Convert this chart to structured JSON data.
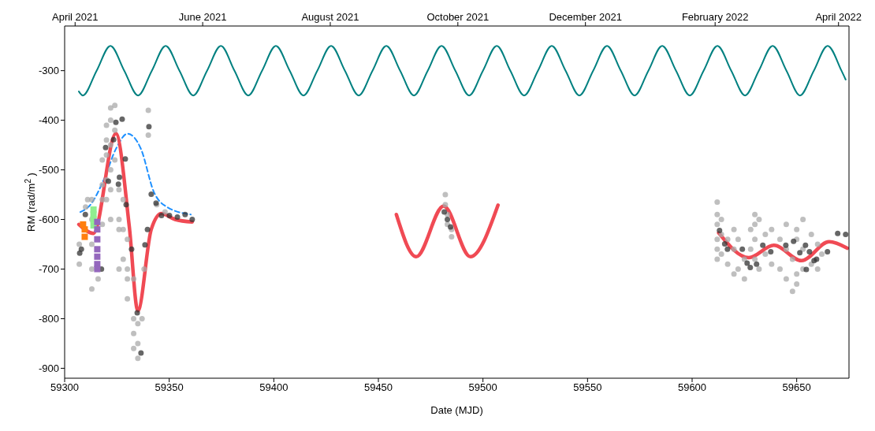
{
  "chart_data": {
    "type": "scatter",
    "xlabel": "Date (MJD)",
    "ylabel": "RM (rad/m$^{2}$)",
    "xlim": [
      59300,
      59675
    ],
    "xticks": [
      59300,
      59350,
      59400,
      59450,
      59500,
      59550,
      59600,
      59650
    ],
    "x2lim": [
      "2021-03-27",
      "2022-04-06"
    ],
    "x2ticks": [
      {
        "value": "2021-04-01",
        "label": "April 2021"
      },
      {
        "value": "2021-06-01",
        "label": "June 2021"
      },
      {
        "value": "2021-08-01",
        "label": "August 2021"
      },
      {
        "value": "2021-10-01",
        "label": "October 2021"
      },
      {
        "value": "2021-12-01",
        "label": "December 2021"
      },
      {
        "value": "2022-02-01",
        "label": "February 2022"
      },
      {
        "value": "2022-04-01",
        "label": "April 2022"
      }
    ],
    "ylim": [
      -920,
      -210
    ],
    "yticks": [
      -900,
      -800,
      -700,
      -600,
      -500,
      -400,
      -300
    ],
    "grid": false,
    "legend": false,
    "series": [
      {
        "marker": "circle",
        "color": "#aaaaaa",
        "x": [
          59307,
          59307,
          59310,
          59311,
          59313,
          59313,
          59313,
          59313,
          59313,
          59316,
          59318,
          59318,
          59318,
          59318,
          59320,
          59320,
          59320,
          59320,
          59320,
          59322,
          59322,
          59322,
          59322,
          59322,
          59322,
          59324,
          59324,
          59324,
          59326,
          59326,
          59326,
          59326,
          59328,
          59328,
          59328,
          59330,
          59330,
          59330,
          59330,
          59333,
          59333,
          59333,
          59333,
          59335,
          59335,
          59335,
          59337,
          59338,
          59340,
          59340,
          59344,
          59348,
          59482,
          59482,
          59483,
          59483,
          59485,
          59485,
          59612,
          59612,
          59612,
          59612,
          59612,
          59612,
          59614,
          59614,
          59614,
          59617,
          59617,
          59620,
          59620,
          59620,
          59622,
          59622,
          59625,
          59625,
          59628,
          59628,
          59630,
          59630,
          59630,
          59630,
          59632,
          59632,
          59635,
          59635,
          59638,
          59638,
          59642,
          59642,
          59645,
          59645,
          59645,
          59648,
          59648,
          59650,
          59650,
          59650,
          59650,
          59653,
          59653,
          59653,
          59657,
          59657,
          59660,
          59660,
          59662
        ],
        "values": [
          -690,
          -650,
          -575,
          -560,
          -560,
          -600,
          -650,
          -700,
          -740,
          -720,
          -480,
          -530,
          -560,
          -610,
          -410,
          -440,
          -470,
          -520,
          -560,
          -375,
          -400,
          -450,
          -500,
          -540,
          -600,
          -370,
          -420,
          -480,
          -540,
          -600,
          -620,
          -700,
          -560,
          -620,
          -680,
          -640,
          -700,
          -720,
          -760,
          -720,
          -800,
          -830,
          -860,
          -810,
          -850,
          -880,
          -800,
          -700,
          -380,
          -430,
          -570,
          -585,
          -550,
          -570,
          -590,
          -610,
          -620,
          -635,
          -565,
          -590,
          -610,
          -640,
          -660,
          -680,
          -600,
          -630,
          -670,
          -640,
          -690,
          -620,
          -660,
          -710,
          -640,
          -700,
          -680,
          -720,
          -620,
          -660,
          -590,
          -610,
          -640,
          -680,
          -600,
          -700,
          -630,
          -670,
          -620,
          -690,
          -640,
          -700,
          -610,
          -660,
          -720,
          -680,
          -745,
          -620,
          -640,
          -710,
          -730,
          -600,
          -660,
          -700,
          -630,
          -690,
          -650,
          -700,
          -670
        ]
      },
      {
        "marker": "circle",
        "color": "#333333",
        "x": [
          59307.2,
          59308,
          59309.9,
          59317.6,
          59319.6,
          59320.9,
          59323.4,
          59324.5,
          59325.7,
          59326.2,
          59327.5,
          59329,
          59329.4,
          59332,
          59334.7,
          59336.5,
          59338.4,
          59339.6,
          59340.3,
          59341.4,
          59343.7,
          59346.3,
          59350.1,
          59353.9,
          59357.6,
          59361,
          59481.5,
          59483,
          59484.5,
          59613.1,
          59615.6,
          59616.9,
          59624,
          59626.3,
          59627.8,
          59630.8,
          59633.8,
          59637.6,
          59644.8,
          59648.5,
          59651.5,
          59654.2,
          59654.6,
          59656.1,
          59658.3,
          59659.5,
          59664.7,
          59669.6,
          59673.4
        ],
        "values": [
          -668,
          -660,
          -590,
          -700,
          -455,
          -523,
          -439,
          -404,
          -529,
          -515,
          -398,
          -478,
          -570,
          -660,
          -788,
          -869,
          -651,
          -620,
          -413,
          -549,
          -567,
          -592,
          -592,
          -595,
          -590,
          -600,
          -585,
          -600,
          -615,
          -622,
          -649,
          -660,
          -660,
          -688,
          -697,
          -690,
          -652,
          -665,
          -652,
          -644,
          -667,
          -652,
          -701,
          -665,
          -683,
          -680,
          -665,
          -628,
          -630
        ]
      },
      {
        "marker": "square",
        "color": "#ff7f0e",
        "x": [
          59308.8,
          59309.6,
          59309.6
        ],
        "values": [
          -610,
          -620,
          -635
        ]
      },
      {
        "marker": "square",
        "color": "#90ee90",
        "x": [
          59313.8,
          59313.8,
          59313.8,
          59313.8
        ],
        "values": [
          -580,
          -590,
          -600,
          -612
        ]
      },
      {
        "marker": "square",
        "color": "#9467bd",
        "x": [
          59315.6,
          59315.6,
          59315.6,
          59315.6,
          59315.6,
          59315.6,
          59315.6
        ],
        "values": [
          -605,
          -620,
          -640,
          -660,
          -675,
          -690,
          -700
        ]
      },
      {
        "type": "line",
        "line_style": "solid",
        "color": "#008080",
        "x": [
          59306.8,
          59308.7,
          59315.3,
          59321.9,
          59328.5,
          59335.1,
          59341.7,
          59348.3,
          59354.9,
          59361.5,
          59368.1,
          59374.7,
          59381.2,
          59387.8,
          59394.4,
          59401.0,
          59407.6,
          59414.2,
          59420.8,
          59427.4,
          59434.0,
          59440.6,
          59447.2,
          59453.8,
          59460.4,
          59467.0,
          59473.6,
          59480.2,
          59486.8,
          59493.4,
          59500.0,
          59506.6,
          59513.1,
          59519.7,
          59526.3,
          59532.9,
          59539.5,
          59546.1,
          59552.7,
          59559.3,
          59565.9,
          59572.5,
          59579.1,
          59585.7,
          59592.3,
          59598.9,
          59605.5,
          59612.1,
          59618.7,
          59625.3,
          59631.9,
          59638.5,
          59645.1,
          59651.6,
          59658.2,
          59664.8,
          59671.4,
          59673.4
        ],
        "values": [
          -342,
          -350,
          -300,
          -250,
          -300,
          -350,
          -300,
          -250,
          -300,
          -350,
          -300,
          -250,
          -300,
          -350,
          -300,
          -250,
          -300,
          -350,
          -300,
          -250,
          -300,
          -350,
          -300,
          -250,
          -300,
          -350,
          -300,
          -250,
          -300,
          -350,
          -300,
          -250,
          -300,
          -350,
          -300,
          -250,
          -300,
          -350,
          -300,
          -250,
          -300,
          -350,
          -300,
          -250,
          -300,
          -350,
          -300,
          -250,
          -300,
          -350,
          -300,
          -250,
          -300,
          -350,
          -300,
          -250,
          -300,
          -318
        ]
      },
      {
        "type": "line",
        "line_style": "dashed",
        "color": "#1e90ff",
        "x": [
          59307.5,
          59312.4,
          59318.8,
          59324.5,
          59330.1,
          59336.5,
          59342.6,
          59349,
          59360.3
        ],
        "values": [
          -585,
          -570,
          -519,
          -458,
          -427,
          -458,
          -544,
          -575,
          -590
        ]
      },
      {
        "type": "line",
        "line_style": "solid",
        "color": "#f04a54",
        "x": [
          59306.8,
          59313.8,
          59324.5,
          59330.9,
          59335,
          59341.4,
          59346.3,
          59352.8,
          59361
        ],
        "values": [
          -610,
          -628,
          -427,
          -614,
          -784,
          -620,
          -588,
          -600,
          -605
        ]
      },
      {
        "type": "line",
        "line_style": "solid",
        "color": "#f04a54",
        "x": [
          59458.6,
          59468.1,
          59481.2,
          59494,
          59507.2
        ],
        "values": [
          -590,
          -675,
          -573,
          -675,
          -571
        ]
      },
      {
        "type": "line",
        "line_style": "solid",
        "color": "#f04a54",
        "x": [
          59612.7,
          59627.1,
          59639.1,
          59652.3,
          59665.5,
          59674.2
        ],
        "values": [
          -627,
          -677,
          -652,
          -683,
          -645,
          -658
        ]
      }
    ]
  }
}
